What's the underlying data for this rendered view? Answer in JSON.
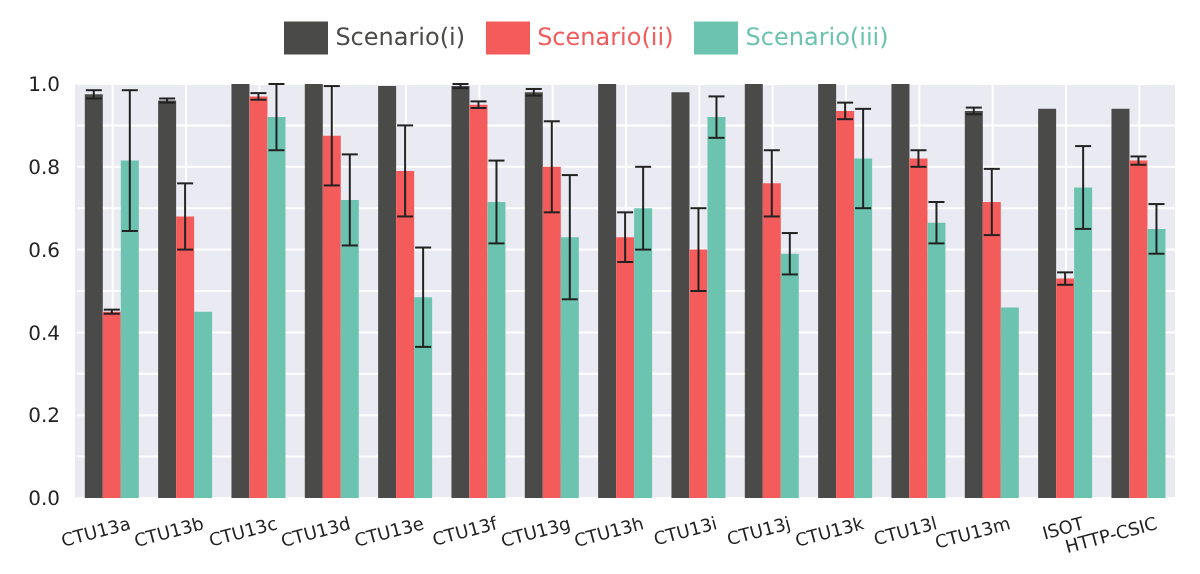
{
  "chart_data": {
    "type": "bar",
    "categories": [
      "CTU13a",
      "CTU13b",
      "CTU13c",
      "CTU13d",
      "CTU13e",
      "CTU13f",
      "CTU13g",
      "CTU13h",
      "CTU13i",
      "CTU13j",
      "CTU13k",
      "CTU13l",
      "CTU13m",
      "ISOT",
      "HTTP-CSIC"
    ],
    "series": [
      {
        "name": "Scenario(i)",
        "color": "#4a4a48",
        "values": [
          0.975,
          0.96,
          1.0,
          1.0,
          0.995,
          0.995,
          0.98,
          1.0,
          0.98,
          1.0,
          1.0,
          1.0,
          0.935,
          0.94,
          0.94
        ],
        "errors": [
          0.01,
          0.005,
          null,
          null,
          null,
          0.005,
          0.008,
          null,
          null,
          null,
          null,
          null,
          0.008,
          null,
          null
        ]
      },
      {
        "name": "Scenario(ii)",
        "color": "#f45b5b",
        "values": [
          0.45,
          0.68,
          0.97,
          0.875,
          0.79,
          0.95,
          0.8,
          0.63,
          0.6,
          0.76,
          0.935,
          0.82,
          0.715,
          0.53,
          0.815
        ],
        "errors": [
          0.005,
          0.08,
          0.008,
          0.12,
          0.11,
          0.008,
          0.11,
          0.06,
          0.1,
          0.08,
          0.02,
          0.02,
          0.08,
          0.015,
          0.01
        ]
      },
      {
        "name": "Scenario(iii)",
        "color": "#6cc3b0",
        "values": [
          0.815,
          0.45,
          0.92,
          0.72,
          0.485,
          0.715,
          0.63,
          0.7,
          0.92,
          0.59,
          0.82,
          0.665,
          0.46,
          0.75,
          0.65
        ],
        "errors": [
          0.17,
          null,
          0.08,
          0.11,
          0.12,
          0.1,
          0.15,
          0.1,
          0.05,
          0.05,
          0.12,
          0.05,
          null,
          0.1,
          0.06
        ]
      }
    ],
    "ylim": [
      0,
      1
    ],
    "yticks": [
      {
        "value": 0,
        "label": "0.0"
      },
      {
        "value": 0.1,
        "label": null
      },
      0.2,
      {
        "value": 0.3,
        "label": null
      },
      0.4,
      {
        "value": 0.5,
        "label": null
      },
      0.6,
      {
        "value": 0.7,
        "label": null
      },
      0.8,
      {
        "value": 0.9,
        "label": null
      },
      {
        "value": 1,
        "label": "1.0"
      }
    ],
    "grid": true,
    "legend": "top"
  }
}
